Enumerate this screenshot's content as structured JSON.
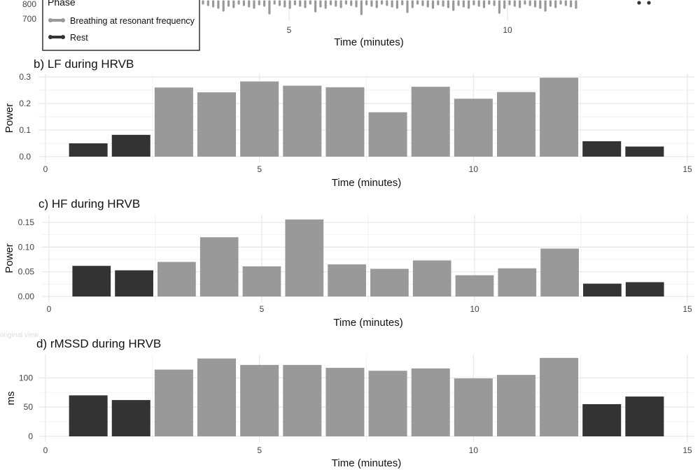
{
  "colors": {
    "breathing": "#999999",
    "rest": "#333333"
  },
  "top_panel": {
    "y_ticks": [
      "800",
      "700"
    ],
    "x_ticks": [
      {
        "x": 5,
        "label": "5"
      },
      {
        "x": 10,
        "label": "10"
      }
    ],
    "xlabel": "Time (minutes)"
  },
  "legend": {
    "title": "Phase",
    "items": [
      {
        "label": "Breathing at resonant frequency",
        "color": "#999999"
      },
      {
        "label": "Rest",
        "color": "#333333"
      }
    ]
  },
  "watermark": "original view",
  "chart_data": [
    {
      "type": "bar",
      "title": "b) LF during HRVB",
      "xlabel": "Time (minutes)",
      "ylabel": "Power",
      "xlim": [
        0,
        15
      ],
      "ylim": [
        0,
        0.3
      ],
      "x_ticks": [
        {
          "v": 0,
          "label": "0"
        },
        {
          "v": 5,
          "label": "5"
        },
        {
          "v": 10,
          "label": "10"
        },
        {
          "v": 15,
          "label": "15"
        }
      ],
      "y_ticks": [
        {
          "v": 0,
          "label": "0.0"
        },
        {
          "v": 0.1,
          "label": "0.1"
        },
        {
          "v": 0.2,
          "label": "0.2"
        },
        {
          "v": 0.3,
          "label": "0.3"
        }
      ],
      "x": [
        1,
        2,
        3,
        4,
        5,
        6,
        7,
        8,
        9,
        10,
        11,
        12,
        13,
        14
      ],
      "values": [
        0.05,
        0.082,
        0.26,
        0.242,
        0.283,
        0.267,
        0.261,
        0.167,
        0.263,
        0.218,
        0.243,
        0.297,
        0.058,
        0.038
      ],
      "phase": [
        "rest",
        "rest",
        "breathing",
        "breathing",
        "breathing",
        "breathing",
        "breathing",
        "breathing",
        "breathing",
        "breathing",
        "breathing",
        "breathing",
        "rest",
        "rest"
      ]
    },
    {
      "type": "bar",
      "title": "c) HF during HRVB",
      "xlabel": "Time (minutes)",
      "ylabel": "Power",
      "xlim": [
        0,
        15
      ],
      "ylim": [
        0,
        0.16
      ],
      "x_ticks": [
        {
          "v": 0,
          "label": "0"
        },
        {
          "v": 5,
          "label": "5"
        },
        {
          "v": 10,
          "label": "10"
        },
        {
          "v": 15,
          "label": "15"
        }
      ],
      "y_ticks": [
        {
          "v": 0,
          "label": "0.00"
        },
        {
          "v": 0.05,
          "label": "0.05"
        },
        {
          "v": 0.1,
          "label": "0.10"
        },
        {
          "v": 0.15,
          "label": "0.15"
        }
      ],
      "x": [
        1,
        2,
        3,
        4,
        5,
        6,
        7,
        8,
        9,
        10,
        11,
        12,
        13,
        14
      ],
      "values": [
        0.062,
        0.053,
        0.07,
        0.12,
        0.061,
        0.156,
        0.065,
        0.056,
        0.073,
        0.043,
        0.057,
        0.097,
        0.026,
        0.029
      ],
      "phase": [
        "rest",
        "rest",
        "breathing",
        "breathing",
        "breathing",
        "breathing",
        "breathing",
        "breathing",
        "breathing",
        "breathing",
        "breathing",
        "breathing",
        "rest",
        "rest"
      ]
    },
    {
      "type": "bar",
      "title": "d) rMSSD during HRVB",
      "xlabel": "Time (minutes)",
      "ylabel": "ms",
      "xlim": [
        0,
        15
      ],
      "ylim": [
        0,
        135
      ],
      "x_ticks": [
        {
          "v": 0,
          "label": "0"
        },
        {
          "v": 5,
          "label": "5"
        },
        {
          "v": 10,
          "label": "10"
        },
        {
          "v": 15,
          "label": "15"
        }
      ],
      "y_ticks": [
        {
          "v": 0,
          "label": "0"
        },
        {
          "v": 50,
          "label": "50"
        },
        {
          "v": 100,
          "label": "100"
        }
      ],
      "x": [
        1,
        2,
        3,
        4,
        5,
        6,
        7,
        8,
        9,
        10,
        11,
        12,
        13,
        14
      ],
      "values": [
        70,
        62,
        114,
        133,
        122,
        122,
        117,
        112,
        116,
        99,
        105,
        134,
        55,
        68
      ],
      "phase": [
        "rest",
        "rest",
        "breathing",
        "breathing",
        "breathing",
        "breathing",
        "breathing",
        "breathing",
        "breathing",
        "breathing",
        "breathing",
        "breathing",
        "rest",
        "rest"
      ]
    }
  ]
}
